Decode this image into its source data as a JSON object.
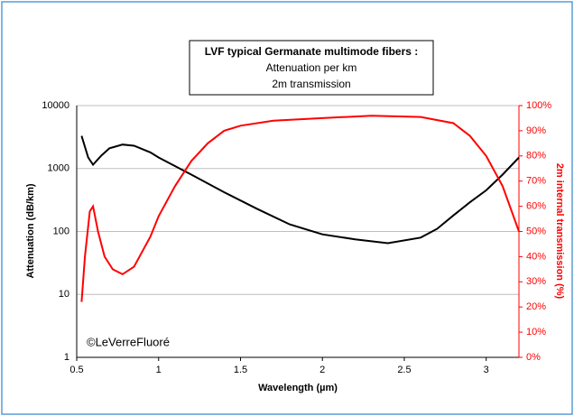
{
  "chart_data": {
    "type": "line",
    "title_lines": [
      "LVF typical Germanate multimode fibers :",
      "Attenuation per km",
      "2m transmission"
    ],
    "xlabel": "Wavelength (µm)",
    "ylabel": "Attenuation (dB/km)",
    "y2label": "2m internal transmission (%)",
    "annotation": "©LeVerreFluoré",
    "xlim": [
      0.5,
      3.2
    ],
    "xticks": [
      0.5,
      1,
      1.5,
      2,
      2.5,
      3
    ],
    "ylim": [
      1,
      10000
    ],
    "yticks": [
      1,
      10,
      100,
      1000,
      10000
    ],
    "ylog": true,
    "y2lim": [
      0,
      100
    ],
    "y2ticks": [
      {
        "value": 0,
        "label": "0%"
      },
      {
        "value": 10,
        "label": "10%"
      },
      {
        "value": 20,
        "label": "20%"
      },
      {
        "value": 30,
        "label": "30%"
      },
      {
        "value": 40,
        "label": "40%"
      },
      {
        "value": 50,
        "label": "50%"
      },
      {
        "value": 60,
        "label": "60%"
      },
      {
        "value": 70,
        "label": "70%"
      },
      {
        "value": 80,
        "label": "80%"
      },
      {
        "value": 90,
        "label": "90%"
      },
      {
        "value": 100,
        "label": "100%"
      }
    ],
    "grid": true,
    "series": [
      {
        "color": "#000000",
        "axis": "y",
        "x": [
          0.53,
          0.57,
          0.6,
          0.65,
          0.7,
          0.78,
          0.85,
          0.95,
          1.0,
          1.2,
          1.4,
          1.6,
          1.8,
          2.0,
          2.2,
          2.4,
          2.6,
          2.7,
          2.8,
          2.9,
          3.0,
          3.1,
          3.2
        ],
        "values": [
          3300,
          1500,
          1150,
          1600,
          2100,
          2400,
          2300,
          1800,
          1500,
          800,
          420,
          230,
          130,
          90,
          75,
          65,
          80,
          110,
          180,
          290,
          450,
          800,
          1500
        ]
      },
      {
        "color": "#ff0000",
        "axis": "y2",
        "x": [
          0.53,
          0.55,
          0.58,
          0.6,
          0.63,
          0.67,
          0.72,
          0.78,
          0.85,
          0.95,
          1.0,
          1.1,
          1.2,
          1.3,
          1.4,
          1.5,
          1.7,
          2.0,
          2.3,
          2.6,
          2.8,
          2.9,
          3.0,
          3.1,
          3.2
        ],
        "values": [
          22,
          40,
          58,
          60,
          50,
          40,
          35,
          33,
          36,
          48,
          56,
          68,
          78,
          85,
          90,
          92,
          94,
          95,
          96,
          95.5,
          93,
          88,
          80,
          68,
          50
        ]
      }
    ]
  }
}
